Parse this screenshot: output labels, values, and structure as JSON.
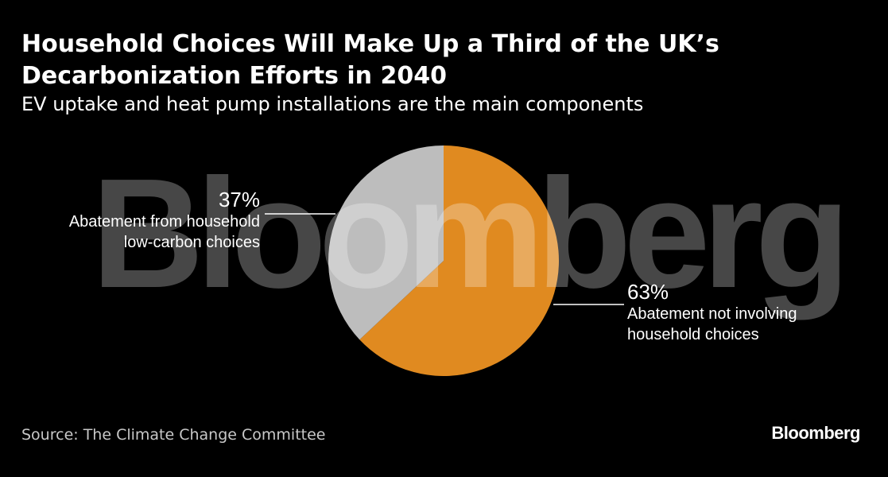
{
  "chart_data": {
    "type": "pie",
    "title": "Household Choices Will Make Up a Third of the UK’s Decarbonization Efforts in 2040",
    "subtitle": "EV uptake and heat pump installations are the main components",
    "slices": [
      {
        "label": "Abatement not involving household choices",
        "value": 63,
        "value_label": "63%",
        "color": "#e08a20"
      },
      {
        "label": "Abatement from household low-carbon choices",
        "value": 37,
        "value_label": "37%",
        "color": "#bdbdbd"
      }
    ],
    "source": "Source: The Climate Change Committee"
  },
  "labels": {
    "household": {
      "pct": "37%",
      "line1": "Abatement from household",
      "line2": "low-carbon choices"
    },
    "other": {
      "pct": "63%",
      "line1": "Abatement not involving",
      "line2": "household choices"
    }
  },
  "watermark": "Bloomberg",
  "brand": "Bloomberg"
}
